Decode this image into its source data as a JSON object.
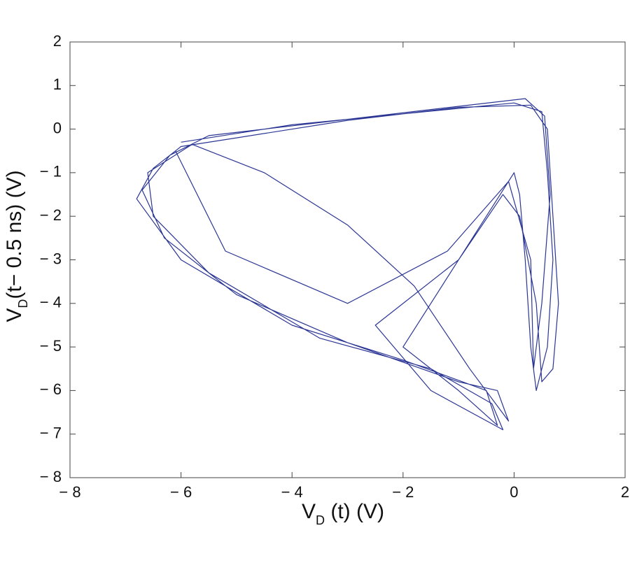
{
  "chart_data": {
    "type": "line",
    "xlabel": {
      "main": "V",
      "sub": "D",
      "rest": " (t) (V)"
    },
    "ylabel": {
      "main": "V",
      "sub": "D",
      "rest": "(t− 0.5 ns) (V)"
    },
    "xlim": [
      -8,
      2
    ],
    "ylim": [
      -8,
      2
    ],
    "xticks": [
      {
        "value": -8,
        "label": "− 8"
      },
      {
        "value": -6,
        "label": "− 6"
      },
      {
        "value": -4,
        "label": "− 4"
      },
      {
        "value": -2,
        "label": "− 2"
      },
      0,
      2
    ],
    "yticks": [
      {
        "value": -8,
        "label": "− 8"
      },
      {
        "value": -7,
        "label": "− 7"
      },
      {
        "value": -6,
        "label": "− 6"
      },
      {
        "value": -5,
        "label": "− 5"
      },
      {
        "value": -4,
        "label": "− 4"
      },
      {
        "value": -3,
        "label": "− 3"
      },
      {
        "value": -2,
        "label": "− 2"
      },
      {
        "value": -1,
        "label": "− 1"
      },
      0,
      1,
      2
    ],
    "series": [
      {
        "color": "#2b3694",
        "x": [
          -6,
          -4,
          -2,
          0,
          0.5,
          0.6,
          0.7,
          0.6,
          0.4,
          0.3,
          0.2,
          0.1,
          0,
          -0.5,
          -1.5,
          -2,
          -1,
          -0.3,
          -0.5,
          -2,
          -4,
          -6,
          -6.8,
          -6.5,
          -6,
          -5,
          -3,
          -1,
          0.3,
          0.6,
          0.7,
          0.8,
          0.7,
          0.5,
          0.4,
          0.1,
          -0.2,
          -1,
          -2.5,
          -1.5,
          -0.2,
          -0.4,
          -1.5,
          -3.5,
          -5.5,
          -6.5,
          -6.6,
          -5.8,
          -4.5,
          -3,
          -1.8,
          -0.8,
          -0.1,
          -0.3,
          -1,
          -3,
          -5,
          -6.3,
          -6.7,
          -6.2,
          -5.5,
          -3.5,
          -1.5,
          0.2,
          0.55,
          0.65,
          0.5,
          0.35,
          0.3,
          -0.1,
          -1.2,
          -3,
          -5.2,
          -6.1
        ],
        "y": [
          -0.3,
          0.1,
          0.35,
          0.6,
          0.4,
          -1,
          -3,
          -5,
          -6,
          -5,
          -3,
          -1.5,
          -1,
          -2,
          -4,
          -5,
          -6,
          -6.8,
          -6,
          -5.3,
          -4.5,
          -3,
          -1.6,
          -0.9,
          -0.4,
          -0.2,
          0.2,
          0.5,
          0.55,
          0,
          -2,
          -4,
          -5.5,
          -5.8,
          -4,
          -2,
          -1.5,
          -3,
          -4.5,
          -6,
          -6.9,
          -6.3,
          -5.5,
          -4.8,
          -3.3,
          -2,
          -1,
          -0.35,
          -1,
          -2.2,
          -3.6,
          -5.5,
          -6.7,
          -6,
          -5.8,
          -4.9,
          -3.8,
          -2.5,
          -1.4,
          -0.6,
          -0.15,
          0.15,
          0.45,
          0.7,
          0.3,
          -1.5,
          -4,
          -5.5,
          -3,
          -1.2,
          -2.8,
          -4,
          -2.8,
          -0.5
        ]
      }
    ]
  }
}
